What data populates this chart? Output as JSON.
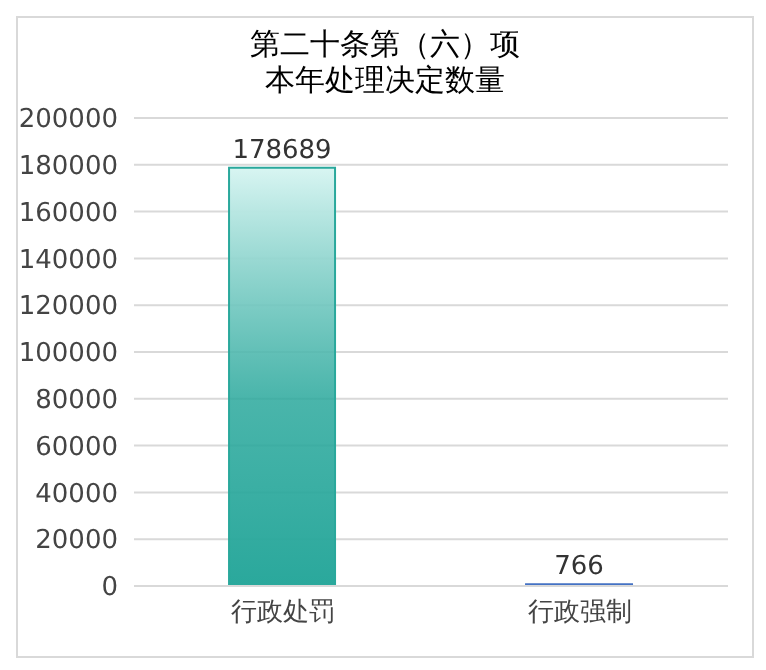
{
  "chart_data": {
    "type": "bar",
    "title": "第二十条第（六）项",
    "subtitle": "本年处理决定数量",
    "categories": [
      "行政处罚",
      "行政强制"
    ],
    "values": [
      178689,
      766
    ],
    "colors": [
      "#2aa89c",
      "#4472c4"
    ],
    "ylim": [
      0,
      200000
    ],
    "yticks": [
      0,
      20000,
      40000,
      60000,
      80000,
      100000,
      120000,
      140000,
      160000,
      180000,
      200000
    ],
    "grid": "y",
    "data_labels": true
  }
}
